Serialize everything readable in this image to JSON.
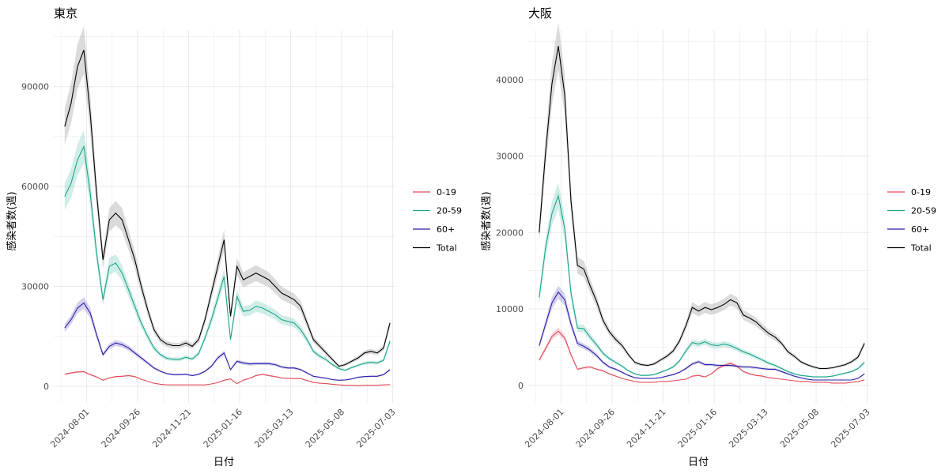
{
  "colors": {
    "age_0_19": "#E04B5A",
    "age_20_59": "#1AA58B",
    "age_60_plus": "#2A1FA8",
    "total": "#000000",
    "grid": "#EBEBEB",
    "axis_text": "#4D4D4D"
  },
  "chart_data": [
    {
      "type": "line",
      "title": "東京",
      "xlabel": "日付",
      "ylabel": "感染者数(週)",
      "x_tick_labels": [
        "2024-08-01",
        "2024-09-26",
        "2024-11-21",
        "2025-01-16",
        "2025-03-13",
        "2025-05-08",
        "2025-07-03"
      ],
      "x_range": [
        "2024-06-26",
        "2025-07-06"
      ],
      "y_ticks": [
        0,
        30000,
        60000,
        90000
      ],
      "ylim": [
        -5000,
        107000
      ],
      "grid": true,
      "legend": "right",
      "ribbons": true,
      "x": [
        "2024-07-08",
        "2024-07-15",
        "2024-07-22",
        "2024-07-29",
        "2024-08-05",
        "2024-08-12",
        "2024-08-19",
        "2024-08-26",
        "2024-09-02",
        "2024-09-09",
        "2024-09-16",
        "2024-09-23",
        "2024-09-30",
        "2024-10-07",
        "2024-10-14",
        "2024-10-21",
        "2024-10-28",
        "2024-11-04",
        "2024-11-11",
        "2024-11-18",
        "2024-11-25",
        "2024-12-02",
        "2024-12-09",
        "2024-12-16",
        "2024-12-23",
        "2024-12-30",
        "2025-01-06",
        "2025-01-13",
        "2025-01-20",
        "2025-01-27",
        "2025-02-03",
        "2025-02-10",
        "2025-02-17",
        "2025-02-24",
        "2025-03-03",
        "2025-03-10",
        "2025-03-17",
        "2025-03-24",
        "2025-03-31",
        "2025-04-07",
        "2025-04-14",
        "2025-04-21",
        "2025-04-28",
        "2025-05-05",
        "2025-05-12",
        "2025-05-19",
        "2025-05-26",
        "2025-06-02",
        "2025-06-09",
        "2025-06-16",
        "2025-06-23",
        "2025-06-30"
      ],
      "series": [
        {
          "name": "0-19",
          "color_key": "age_0_19",
          "values": [
            3600,
            4000,
            4300,
            4400,
            3500,
            2800,
            1800,
            2500,
            2900,
            3000,
            3200,
            2900,
            2100,
            1500,
            900,
            600,
            400,
            400,
            400,
            400,
            400,
            400,
            400,
            700,
            1100,
            1800,
            2200,
            800,
            1800,
            2400,
            3200,
            3600,
            3200,
            2900,
            2500,
            2400,
            2300,
            2300,
            1700,
            1200,
            900,
            800,
            600,
            400,
            300,
            300,
            200,
            300,
            300,
            300,
            400,
            500
          ]
        },
        {
          "name": "20-59",
          "color_key": "age_20_59",
          "values": [
            57000,
            61000,
            68000,
            72000,
            58000,
            40000,
            26000,
            36000,
            37000,
            34000,
            29000,
            24000,
            19000,
            15000,
            11500,
            9500,
            8400,
            8100,
            8100,
            8700,
            8200,
            9800,
            14500,
            20000,
            26500,
            33000,
            14000,
            27000,
            22500,
            22800,
            24000,
            23500,
            22500,
            21500,
            20000,
            19500,
            19000,
            17000,
            14000,
            10500,
            9000,
            8000,
            6500,
            5300,
            4800,
            5600,
            6300,
            6900,
            7200,
            7000,
            7800,
            13500
          ]
        },
        {
          "name": "60+",
          "color_key": "age_60_plus",
          "values": [
            17500,
            20000,
            23500,
            25000,
            22000,
            15500,
            9500,
            12000,
            13000,
            12500,
            11500,
            10000,
            8500,
            7000,
            5500,
            4500,
            3800,
            3500,
            3500,
            3600,
            3200,
            3600,
            4500,
            6000,
            8500,
            10000,
            5000,
            7500,
            7000,
            6700,
            6800,
            6800,
            6800,
            6500,
            5800,
            5500,
            5500,
            5000,
            4000,
            3000,
            2700,
            2400,
            2000,
            1800,
            1900,
            2200,
            2700,
            2900,
            3000,
            3000,
            3500,
            5000
          ]
        },
        {
          "name": "Total",
          "color_key": "total",
          "values": [
            78000,
            85000,
            96000,
            101000,
            82000,
            58000,
            38000,
            50000,
            52000,
            50000,
            44000,
            38000,
            30000,
            23000,
            17000,
            14000,
            12700,
            12200,
            12200,
            13000,
            12000,
            14000,
            20000,
            28000,
            36000,
            44000,
            21000,
            36000,
            32000,
            33000,
            34000,
            33000,
            32000,
            30000,
            28000,
            27000,
            26000,
            24000,
            19000,
            14000,
            12000,
            10000,
            8000,
            6000,
            6500,
            7500,
            8500,
            10000,
            10500,
            10000,
            11500,
            19000
          ]
        }
      ]
    },
    {
      "type": "line",
      "title": "大阪",
      "xlabel": "日付",
      "ylabel": "感染者数(週)",
      "x_tick_labels": [
        "2024-08-01",
        "2024-09-26",
        "2024-11-21",
        "2025-01-16",
        "2025-03-13",
        "2025-05-08",
        "2025-07-03"
      ],
      "x_range": [
        "2024-06-26",
        "2025-07-06"
      ],
      "y_ticks": [
        0,
        10000,
        20000,
        30000,
        40000
      ],
      "ylim": [
        -2300,
        46500
      ],
      "grid": true,
      "legend": "right",
      "ribbons": true,
      "x": [
        "2024-07-08",
        "2024-07-15",
        "2024-07-22",
        "2024-07-29",
        "2024-08-05",
        "2024-08-12",
        "2024-08-19",
        "2024-08-26",
        "2024-09-02",
        "2024-09-09",
        "2024-09-16",
        "2024-09-23",
        "2024-09-30",
        "2024-10-07",
        "2024-10-14",
        "2024-10-21",
        "2024-10-28",
        "2024-11-04",
        "2024-11-11",
        "2024-11-18",
        "2024-11-25",
        "2024-12-02",
        "2024-12-09",
        "2024-12-16",
        "2024-12-23",
        "2024-12-30",
        "2025-01-06",
        "2025-01-13",
        "2025-01-20",
        "2025-01-27",
        "2025-02-03",
        "2025-02-10",
        "2025-02-17",
        "2025-02-24",
        "2025-03-03",
        "2025-03-10",
        "2025-03-17",
        "2025-03-24",
        "2025-03-31",
        "2025-04-07",
        "2025-04-14",
        "2025-04-21",
        "2025-04-28",
        "2025-05-05",
        "2025-05-12",
        "2025-05-19",
        "2025-05-26",
        "2025-06-02",
        "2025-06-09",
        "2025-06-16",
        "2025-06-23",
        "2025-06-30"
      ],
      "series": [
        {
          "name": "0-19",
          "color_key": "age_0_19",
          "values": [
            3300,
            4800,
            6400,
            7100,
            6200,
            4000,
            2100,
            2300,
            2400,
            2100,
            1900,
            1500,
            1200,
            900,
            700,
            500,
            400,
            400,
            400,
            500,
            500,
            600,
            700,
            800,
            1200,
            1300,
            1100,
            1500,
            2200,
            2600,
            2900,
            2500,
            1800,
            1500,
            1300,
            1200,
            1000,
            900,
            800,
            700,
            600,
            500,
            500,
            400,
            400,
            400,
            300,
            300,
            300,
            400,
            500,
            700
          ]
        },
        {
          "name": "20-59",
          "color_key": "age_20_59",
          "values": [
            11500,
            18000,
            22500,
            24800,
            20500,
            12000,
            7500,
            7400,
            6300,
            5300,
            4200,
            3500,
            3000,
            2500,
            1900,
            1500,
            1300,
            1300,
            1400,
            1700,
            2000,
            2400,
            3200,
            4500,
            5600,
            5400,
            5700,
            5300,
            5200,
            5400,
            5200,
            4800,
            4400,
            4100,
            3700,
            3300,
            2900,
            2600,
            2200,
            1800,
            1500,
            1300,
            1200,
            1100,
            1100,
            1100,
            1200,
            1400,
            1600,
            1800,
            2200,
            3000
          ]
        },
        {
          "name": "60+",
          "color_key": "age_60_plus",
          "values": [
            5200,
            8000,
            10800,
            12200,
            11200,
            8000,
            5500,
            5100,
            4600,
            3900,
            3000,
            2400,
            2100,
            1700,
            1300,
            1000,
            900,
            900,
            900,
            1000,
            1200,
            1400,
            1700,
            2200,
            2800,
            3100,
            2700,
            2700,
            2600,
            2600,
            2600,
            2500,
            2400,
            2400,
            2300,
            2200,
            2100,
            2100,
            1800,
            1500,
            1200,
            1000,
            800,
            700,
            700,
            700,
            700,
            700,
            700,
            700,
            900,
            1500
          ]
        },
        {
          "name": "Total",
          "color_key": "total",
          "values": [
            20000,
            30500,
            39500,
            44400,
            38000,
            24000,
            15700,
            15200,
            13000,
            11000,
            8500,
            7000,
            6000,
            5200,
            4000,
            3000,
            2700,
            2600,
            2800,
            3300,
            3800,
            4500,
            5800,
            7800,
            10200,
            9700,
            10200,
            9900,
            10200,
            10600,
            11200,
            10800,
            9200,
            8800,
            8300,
            7500,
            6800,
            6300,
            5500,
            4400,
            3800,
            3100,
            2700,
            2400,
            2200,
            2200,
            2300,
            2500,
            2700,
            3100,
            3700,
            5500
          ]
        }
      ]
    }
  ]
}
